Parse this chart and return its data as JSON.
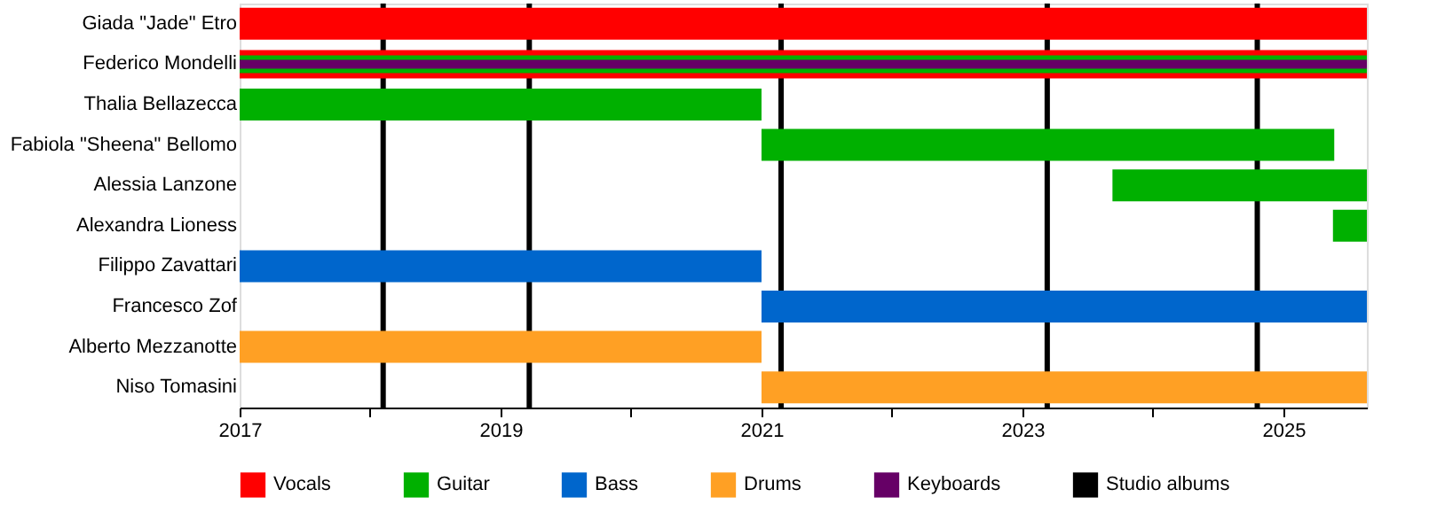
{
  "chart_data": {
    "type": "bar",
    "orientation": "horizontal",
    "categories": [
      "Giada \"Jade\" Etro",
      "Federico Mondelli",
      "Thalia Bellazecca",
      "Fabiola \"Sheena\" Bellomo",
      "Alessia Lanzone",
      "Alexandra Lioness",
      "Filippo Zavattari",
      "Francesco Zof",
      "Alberto Mezzanotte",
      "Niso Tomasini"
    ],
    "series": [
      {
        "name": "Vocals",
        "color": "#ff0000",
        "values": [
          8.64,
          8.64,
          null,
          null,
          null,
          null,
          null,
          null,
          null,
          null
        ],
        "base": [
          2017,
          2017,
          null,
          null,
          null,
          null,
          null,
          null,
          null,
          null
        ]
      },
      {
        "name": "Guitar",
        "color": "#00b000",
        "values": [
          null,
          8.64,
          4.0,
          4.39,
          1.95,
          0.26,
          null,
          null,
          null,
          null
        ],
        "base": [
          null,
          2017,
          2017,
          2021,
          2023.69,
          2025.38,
          null,
          null,
          null,
          null
        ]
      },
      {
        "name": "Bass",
        "color": "#0066cc",
        "values": [
          null,
          null,
          null,
          null,
          null,
          null,
          4.0,
          4.64,
          null,
          null
        ],
        "base": [
          null,
          null,
          null,
          null,
          null,
          null,
          2017,
          2021,
          null,
          null
        ]
      },
      {
        "name": "Drums",
        "color": "#ffa024",
        "values": [
          null,
          null,
          null,
          null,
          null,
          null,
          null,
          null,
          4.0,
          4.64
        ],
        "base": [
          null,
          null,
          null,
          null,
          null,
          null,
          null,
          null,
          2017,
          2021
        ]
      },
      {
        "name": "Keyboards",
        "color": "#660066",
        "values": [
          null,
          8.64,
          null,
          null,
          null,
          null,
          null,
          null,
          null,
          null
        ],
        "base": [
          null,
          2017,
          null,
          null,
          null,
          null,
          null,
          null,
          null,
          null
        ]
      }
    ],
    "xlim": [
      2017,
      2025.64
    ],
    "xticks": [
      2017,
      {
        "value": 2018,
        "label": null
      },
      2019,
      {
        "value": 2020,
        "label": null
      },
      2021,
      {
        "value": 2022,
        "label": null
      },
      2023,
      {
        "value": 2024,
        "label": null
      },
      2025
    ],
    "ref_lines": [
      {
        "axis": "x",
        "value": 2018.1,
        "label": "Studio albums",
        "color": "#000000"
      },
      {
        "axis": "x",
        "value": 2019.22,
        "color": "#000000"
      },
      {
        "axis": "x",
        "value": 2021.15,
        "color": "#000000"
      },
      {
        "axis": "x",
        "value": 2023.19,
        "color": "#000000"
      },
      {
        "axis": "x",
        "value": 2024.8,
        "color": "#000000"
      }
    ],
    "grid": false,
    "legend": "bottom"
  }
}
